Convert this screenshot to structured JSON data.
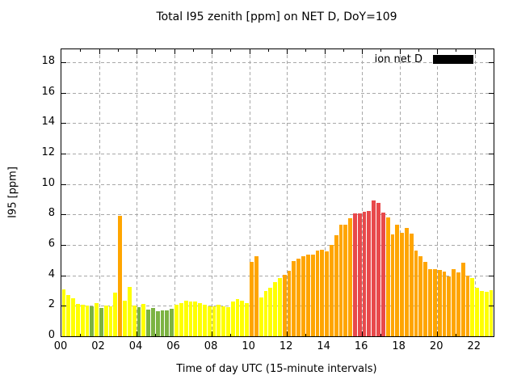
{
  "title": "Total I95 zenith [ppm] on NET D, DoY=109",
  "legend": {
    "label": "ion net D",
    "swatch_color": "#000000"
  },
  "axes": {
    "y": {
      "label": "I95 [ppm]",
      "tick_labels": [
        "0",
        "2",
        "4",
        "6",
        "8",
        "10",
        "12",
        "14",
        "16",
        "18"
      ],
      "tick_step": 2,
      "min": 0,
      "max": 18.84
    },
    "x": {
      "label": "Time of day UTC (15-minute intervals)",
      "major_tick_labels": [
        "00",
        "02",
        "04",
        "06",
        "08",
        "10",
        "12",
        "14",
        "16",
        "18",
        "20",
        "22"
      ],
      "hours_max": 23
    }
  },
  "chart_data": {
    "type": "bar",
    "title": "Total I95 zenith [ppm] on NET D, DoY=109",
    "xlabel": "Time of day UTC (15-minute intervals)",
    "ylabel": "I95 [ppm]",
    "ylim": [
      0,
      18.84
    ],
    "grid": true,
    "legend_position": "top-right",
    "interval_minutes": 15,
    "x": [
      "00:00",
      "00:15",
      "00:30",
      "00:45",
      "01:00",
      "01:15",
      "01:30",
      "01:45",
      "02:00",
      "02:15",
      "02:30",
      "02:45",
      "03:00",
      "03:15",
      "03:30",
      "03:45",
      "04:00",
      "04:15",
      "04:30",
      "04:45",
      "05:00",
      "05:15",
      "05:30",
      "05:45",
      "06:00",
      "06:15",
      "06:30",
      "06:45",
      "07:00",
      "07:15",
      "07:30",
      "07:45",
      "08:00",
      "08:15",
      "08:30",
      "08:45",
      "09:00",
      "09:15",
      "09:30",
      "09:45",
      "10:00",
      "10:15",
      "10:30",
      "10:45",
      "11:00",
      "11:15",
      "11:30",
      "11:45",
      "12:00",
      "12:15",
      "12:30",
      "12:45",
      "13:00",
      "13:15",
      "13:30",
      "13:45",
      "14:00",
      "14:15",
      "14:30",
      "14:45",
      "15:00",
      "15:15",
      "15:30",
      "15:45",
      "16:00",
      "16:15",
      "16:30",
      "16:45",
      "17:00",
      "17:15",
      "17:30",
      "17:45",
      "18:00",
      "18:15",
      "18:30",
      "18:45",
      "19:00",
      "19:15",
      "19:30",
      "19:45",
      "20:00",
      "20:15",
      "20:30",
      "20:45",
      "21:00",
      "21:15",
      "21:30",
      "21:45",
      "22:00",
      "22:15",
      "22:30",
      "22:45"
    ],
    "values": [
      3.1,
      2.7,
      2.5,
      2.1,
      2.05,
      2.0,
      1.95,
      2.2,
      1.85,
      2.0,
      1.95,
      2.85,
      7.9,
      2.35,
      3.25,
      2.0,
      1.9,
      2.1,
      1.75,
      1.85,
      1.65,
      1.7,
      1.7,
      1.8,
      2.05,
      2.2,
      2.35,
      2.3,
      2.3,
      2.2,
      2.05,
      1.95,
      1.95,
      2.05,
      1.95,
      1.9,
      2.3,
      2.45,
      2.35,
      2.2,
      4.9,
      5.25,
      2.55,
      2.95,
      3.2,
      3.55,
      3.8,
      4.05,
      4.3,
      4.95,
      5.1,
      5.25,
      5.35,
      5.35,
      5.6,
      5.7,
      5.55,
      6.0,
      6.65,
      7.3,
      7.35,
      7.75,
      8.05,
      8.05,
      8.15,
      8.25,
      8.9,
      8.75,
      8.1,
      7.8,
      6.7,
      7.3,
      6.8,
      7.1,
      6.75,
      5.6,
      5.25,
      4.9,
      4.4,
      4.4,
      4.35,
      4.25,
      3.95,
      4.4,
      4.2,
      4.85,
      4.0,
      3.8,
      3.2,
      2.95,
      2.9,
      3.05
    ],
    "colors": [
      "yellow",
      "yellow",
      "yellow",
      "yellow",
      "yellow",
      "yellow",
      "green",
      "yellow",
      "green",
      "yellow",
      "yellow",
      "yellow",
      "orange",
      "yellow",
      "yellow",
      "yellow",
      "green",
      "yellow",
      "green",
      "green",
      "green",
      "green",
      "green",
      "green",
      "yellow",
      "yellow",
      "yellow",
      "yellow",
      "yellow",
      "yellow",
      "yellow",
      "yellow",
      "yellow",
      "yellow",
      "yellow",
      "yellow",
      "yellow",
      "yellow",
      "yellow",
      "yellow",
      "orange",
      "orange",
      "yellow",
      "yellow",
      "yellow",
      "yellow",
      "yellow",
      "orange",
      "orange",
      "orange",
      "orange",
      "orange",
      "orange",
      "orange",
      "orange",
      "orange",
      "orange",
      "orange",
      "orange",
      "orange",
      "orange",
      "orange",
      "red",
      "red",
      "red",
      "red",
      "red",
      "red",
      "red",
      "orange",
      "orange",
      "orange",
      "orange",
      "orange",
      "orange",
      "orange",
      "orange",
      "orange",
      "orange",
      "orange",
      "orange",
      "orange",
      "orange",
      "orange",
      "orange",
      "orange",
      "orange",
      "yellow",
      "yellow",
      "yellow",
      "yellow",
      "yellow"
    ],
    "color_map": {
      "yellow": "#ffff00",
      "green": "#7cb342",
      "orange": "#ffa500",
      "red": "#e8494b"
    },
    "series_name": "ion net D"
  }
}
